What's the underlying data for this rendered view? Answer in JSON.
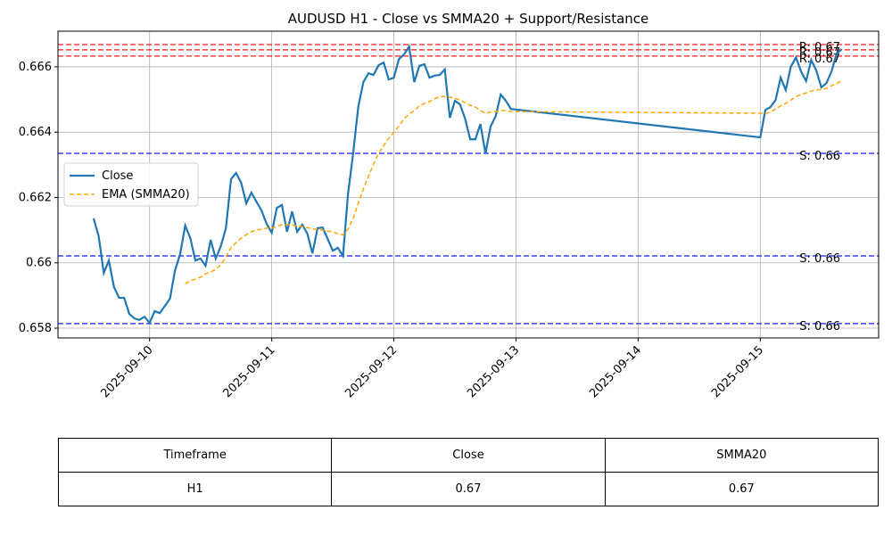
{
  "chart_data": {
    "type": "line",
    "title": "AUDUSD H1 - Close vs SMMA20 + Support/Resistance",
    "x": [
      "2025-09-09 13:00",
      "2025-09-09 14:00",
      "2025-09-09 15:00",
      "2025-09-09 16:00",
      "2025-09-09 17:00",
      "2025-09-09 18:00",
      "2025-09-09 19:00",
      "2025-09-09 20:00",
      "2025-09-09 21:00",
      "2025-09-09 22:00",
      "2025-09-09 23:00",
      "2025-09-10 00:00",
      "2025-09-10 01:00",
      "2025-09-10 02:00",
      "2025-09-10 03:00",
      "2025-09-10 04:00",
      "2025-09-10 05:00",
      "2025-09-10 06:00",
      "2025-09-10 07:00",
      "2025-09-10 08:00",
      "2025-09-10 09:00",
      "2025-09-10 10:00",
      "2025-09-10 11:00",
      "2025-09-10 12:00",
      "2025-09-10 13:00",
      "2025-09-10 14:00",
      "2025-09-10 15:00",
      "2025-09-10 16:00",
      "2025-09-10 17:00",
      "2025-09-10 18:00",
      "2025-09-10 19:00",
      "2025-09-10 20:00",
      "2025-09-10 21:00",
      "2025-09-10 22:00",
      "2025-09-10 23:00",
      "2025-09-11 00:00",
      "2025-09-11 01:00",
      "2025-09-11 02:00",
      "2025-09-11 03:00",
      "2025-09-11 04:00",
      "2025-09-11 05:00",
      "2025-09-11 06:00",
      "2025-09-11 07:00",
      "2025-09-11 08:00",
      "2025-09-11 09:00",
      "2025-09-11 10:00",
      "2025-09-11 11:00",
      "2025-09-11 12:00",
      "2025-09-11 13:00",
      "2025-09-11 14:00",
      "2025-09-11 15:00",
      "2025-09-11 16:00",
      "2025-09-11 17:00",
      "2025-09-11 18:00",
      "2025-09-11 19:00",
      "2025-09-11 20:00",
      "2025-09-11 21:00",
      "2025-09-11 22:00",
      "2025-09-11 23:00",
      "2025-09-12 00:00",
      "2025-09-12 01:00",
      "2025-09-12 02:00",
      "2025-09-12 03:00",
      "2025-09-12 04:00",
      "2025-09-12 05:00",
      "2025-09-12 06:00",
      "2025-09-12 07:00",
      "2025-09-12 08:00",
      "2025-09-12 09:00",
      "2025-09-12 10:00",
      "2025-09-12 11:00",
      "2025-09-12 12:00",
      "2025-09-12 13:00",
      "2025-09-12 14:00",
      "2025-09-12 15:00",
      "2025-09-12 16:00",
      "2025-09-12 17:00",
      "2025-09-12 18:00",
      "2025-09-12 19:00",
      "2025-09-12 20:00",
      "2025-09-12 21:00",
      "2025-09-12 22:00",
      "2025-09-12 23:00",
      "2025-09-15 00:00",
      "2025-09-15 01:00",
      "2025-09-15 02:00",
      "2025-09-15 03:00",
      "2025-09-15 04:00",
      "2025-09-15 05:00",
      "2025-09-15 06:00",
      "2025-09-15 07:00",
      "2025-09-15 08:00",
      "2025-09-15 09:00",
      "2025-09-15 10:00",
      "2025-09-15 11:00",
      "2025-09-15 12:00",
      "2025-09-15 13:00",
      "2025-09-15 14:00",
      "2025-09-15 15:00",
      "2025-09-15 16:00"
    ],
    "series": [
      {
        "name": "Close",
        "color": "#1f77b4",
        "style": "solid",
        "values": [
          0.66136,
          0.66081,
          0.65969,
          0.66007,
          0.65926,
          0.65893,
          0.65893,
          0.65844,
          0.6583,
          0.65825,
          0.65835,
          0.65816,
          0.65852,
          0.65846,
          0.65868,
          0.6589,
          0.65977,
          0.66026,
          0.66114,
          0.66076,
          0.66007,
          0.66013,
          0.65991,
          0.6607,
          0.66013,
          0.66051,
          0.66106,
          0.66256,
          0.66275,
          0.66245,
          0.66182,
          0.66215,
          0.66187,
          0.6616,
          0.66119,
          0.66092,
          0.66168,
          0.66177,
          0.66095,
          0.66157,
          0.66095,
          0.66117,
          0.66089,
          0.66029,
          0.66106,
          0.66108,
          0.66073,
          0.66037,
          0.66046,
          0.66021,
          0.66212,
          0.66335,
          0.66477,
          0.66553,
          0.6658,
          0.66575,
          0.66605,
          0.66613,
          0.66561,
          0.66567,
          0.66624,
          0.66638,
          0.66662,
          0.66553,
          0.66603,
          0.66608,
          0.66567,
          0.66573,
          0.66575,
          0.66592,
          0.66444,
          0.66496,
          0.66485,
          0.66441,
          0.66378,
          0.66378,
          0.66425,
          0.66335,
          0.66417,
          0.66449,
          0.66515,
          0.66496,
          0.66471,
          0.66384,
          0.66468,
          0.66477,
          0.66498,
          0.66567,
          0.66529,
          0.666,
          0.66629,
          0.66586,
          0.66556,
          0.66621,
          0.66589,
          0.66537,
          0.6655,
          0.66586,
          0.6664,
          0.66654
        ]
      },
      {
        "name": "EMA (SMMA20)",
        "color": "#ffa500",
        "style": "dashed",
        "values": [
          null,
          null,
          null,
          null,
          null,
          null,
          null,
          null,
          null,
          null,
          null,
          null,
          null,
          null,
          null,
          null,
          null,
          null,
          0.65936,
          0.65945,
          0.6595,
          0.65956,
          0.65966,
          0.65972,
          0.6598,
          0.65994,
          0.66018,
          0.66046,
          0.66062,
          0.66076,
          0.66086,
          0.66095,
          0.661,
          0.66103,
          0.66106,
          0.66106,
          0.66111,
          0.66117,
          0.66117,
          0.66117,
          0.66111,
          0.66111,
          0.66108,
          0.66103,
          0.66103,
          0.661,
          0.66097,
          0.66095,
          0.66089,
          0.66086,
          0.66103,
          0.66136,
          0.66182,
          0.66226,
          0.66264,
          0.66302,
          0.66335,
          0.66359,
          0.66381,
          0.664,
          0.66419,
          0.66441,
          0.66455,
          0.66466,
          0.6648,
          0.66488,
          0.66493,
          0.66502,
          0.66509,
          0.66509,
          0.66507,
          0.66504,
          0.66498,
          0.6649,
          0.66482,
          0.66477,
          0.66466,
          0.66458,
          0.66461,
          0.66463,
          0.66466,
          0.66466,
          0.66463,
          0.66458,
          0.66458,
          0.66461,
          0.66471,
          0.6648,
          0.66488,
          0.66498,
          0.66509,
          0.66515,
          0.6652,
          0.66526,
          0.66529,
          0.66531,
          0.66534,
          0.66542,
          0.66548,
          0.66559
        ]
      }
    ],
    "levels": [
      {
        "value": 0.66668,
        "label": "R: 0.67",
        "color": "#ff0000"
      },
      {
        "value": 0.66652,
        "label": "R: 0.67",
        "color": "#ff0000"
      },
      {
        "value": 0.66633,
        "label": "R: 0.67",
        "color": "#ff0000"
      },
      {
        "value": 0.66335,
        "label": "S: 0.66",
        "color": "#0000ff"
      },
      {
        "value": 0.66021,
        "label": "S: 0.66",
        "color": "#0000ff"
      },
      {
        "value": 0.65814,
        "label": "S: 0.66",
        "color": "#0000ff"
      }
    ],
    "xlim": [
      "2025-09-09 06:00",
      "2025-09-15 23:15"
    ],
    "xticks": [
      "2025-09-10",
      "2025-09-11",
      "2025-09-12",
      "2025-09-13",
      "2025-09-14",
      "2025-09-15"
    ],
    "ylim": [
      0.6577,
      0.66709
    ],
    "yticks": [
      0.658,
      0.66,
      0.662,
      0.664,
      0.666
    ],
    "grid": true,
    "legend": "center left"
  },
  "table": {
    "header": [
      "Timeframe",
      "Close",
      "SMMA20"
    ],
    "rows": [
      [
        "H1",
        "0.67",
        "0.67"
      ]
    ]
  }
}
